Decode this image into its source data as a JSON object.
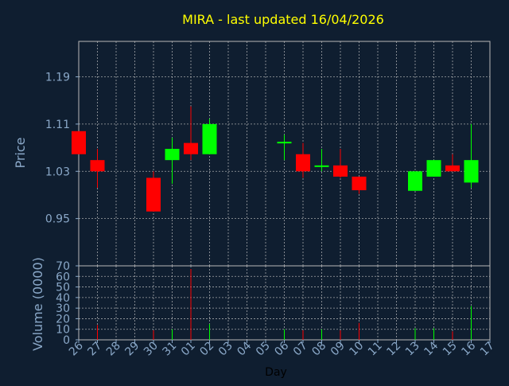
{
  "chart_data": {
    "type": "candlestick",
    "title": "MIRA - last updated 16/04/2026",
    "xlabel": "Day",
    "ylabel_price": "Price",
    "ylabel_volume": "Volume (0000)",
    "categories": [
      "26",
      "27",
      "28",
      "29",
      "30",
      "31",
      "01",
      "02",
      "03",
      "04",
      "05",
      "06",
      "07",
      "08",
      "09",
      "10",
      "11",
      "12",
      "13",
      "14",
      "15",
      "16",
      "17"
    ],
    "price_ticks": [
      "0.95",
      "1.03",
      "1.11",
      "1.19"
    ],
    "price_ylim": [
      0.87,
      1.25
    ],
    "volume_ticks": [
      "0",
      "10",
      "20",
      "30",
      "40",
      "50",
      "60",
      "70"
    ],
    "volume_ylim": [
      0,
      70
    ],
    "grid": true,
    "colors": {
      "background": "#0f1e30",
      "up": "#00ff00",
      "down": "#ff0000",
      "title": "#ffff00",
      "axis_text": "#8aa8c8",
      "grid": "#c8c8c8"
    },
    "candles": [
      {
        "day": "26",
        "open": 1.098,
        "high": 1.098,
        "low": 1.059,
        "close": 1.059
      },
      {
        "day": "27",
        "open": 1.049,
        "high": 1.068,
        "low": 1.002,
        "close": 1.03
      },
      {
        "day": "30",
        "open": 1.019,
        "high": 1.03,
        "low": 0.962,
        "close": 0.962
      },
      {
        "day": "31",
        "open": 1.049,
        "high": 1.087,
        "low": 1.009,
        "close": 1.068
      },
      {
        "day": "01",
        "open": 1.078,
        "high": 1.14,
        "low": 1.049,
        "close": 1.059
      },
      {
        "day": "02",
        "open": 1.059,
        "high": 1.119,
        "low": 1.059,
        "close": 1.11
      },
      {
        "day": "06",
        "open": 1.08,
        "high": 1.092,
        "low": 1.049,
        "close": 1.08
      },
      {
        "day": "07",
        "open": 1.059,
        "high": 1.078,
        "low": 1.019,
        "close": 1.03
      },
      {
        "day": "08",
        "open": 1.04,
        "high": 1.068,
        "low": 1.03,
        "close": 1.04
      },
      {
        "day": "09",
        "open": 1.04,
        "high": 1.068,
        "low": 1.019,
        "close": 1.021
      },
      {
        "day": "10",
        "open": 1.021,
        "high": 1.021,
        "low": 0.992,
        "close": 0.998
      },
      {
        "day": "13",
        "open": 0.997,
        "high": 1.03,
        "low": 0.997,
        "close": 1.03
      },
      {
        "day": "14",
        "open": 1.021,
        "high": 1.049,
        "low": 1.021,
        "close": 1.049
      },
      {
        "day": "15",
        "open": 1.04,
        "high": 1.059,
        "low": 1.03,
        "close": 1.03
      },
      {
        "day": "16",
        "open": 1.011,
        "high": 1.11,
        "low": 1.002,
        "close": 1.049
      }
    ],
    "volume": [
      {
        "day": "27",
        "value": 14,
        "dir": "down"
      },
      {
        "day": "30",
        "value": 9,
        "dir": "down"
      },
      {
        "day": "31",
        "value": 10,
        "dir": "up"
      },
      {
        "day": "01",
        "value": 67,
        "dir": "down"
      },
      {
        "day": "02",
        "value": 15,
        "dir": "up"
      },
      {
        "day": "06",
        "value": 10,
        "dir": "up"
      },
      {
        "day": "07",
        "value": 9,
        "dir": "down"
      },
      {
        "day": "08",
        "value": 10,
        "dir": "up"
      },
      {
        "day": "09",
        "value": 9,
        "dir": "down"
      },
      {
        "day": "10",
        "value": 16,
        "dir": "down"
      },
      {
        "day": "13",
        "value": 11,
        "dir": "up"
      },
      {
        "day": "14",
        "value": 11,
        "dir": "up"
      },
      {
        "day": "15",
        "value": 8,
        "dir": "down"
      },
      {
        "day": "16",
        "value": 32,
        "dir": "up"
      }
    ]
  }
}
